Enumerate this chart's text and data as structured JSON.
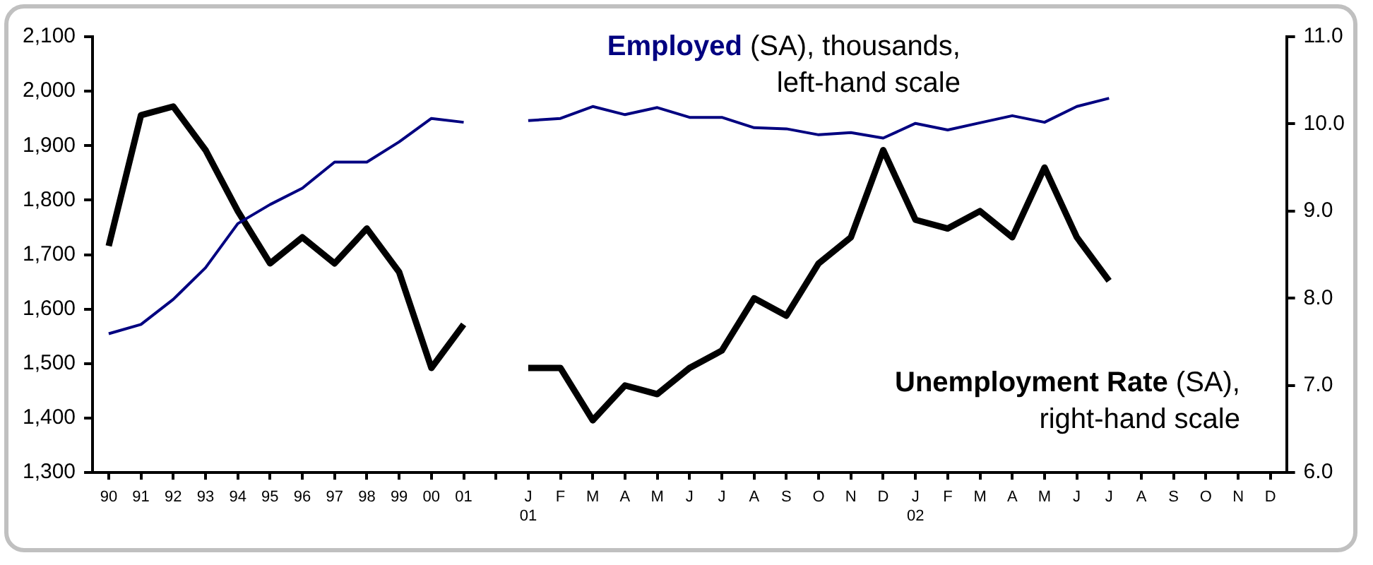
{
  "chart_data": {
    "type": "line",
    "categories": [
      "90",
      "91",
      "92",
      "93",
      "94",
      "95",
      "96",
      "97",
      "98",
      "99",
      "00",
      "01",
      null,
      "J\n01",
      "F",
      "M",
      "A",
      "M",
      "J",
      "J",
      "A",
      "S",
      "O",
      "N",
      "D",
      "J\n02",
      "F",
      "M",
      "A",
      "M",
      "J",
      "J",
      "A",
      "S",
      "O",
      "N",
      "D"
    ],
    "series": [
      {
        "name": "Employed",
        "color": "#000080",
        "axis": "y",
        "values": [
          1555,
          1572,
          1618,
          1676,
          1757,
          1792,
          1822,
          1870,
          1870,
          1907,
          1950,
          1943,
          null,
          1946,
          1950,
          1972,
          1957,
          1970,
          1952,
          1952,
          1933,
          1931,
          1920,
          1924,
          1914,
          1941,
          1929,
          1942,
          1955,
          1943,
          1972,
          1987,
          null,
          null,
          null,
          null,
          null
        ]
      },
      {
        "name": "Unemployment Rate",
        "color": "#000000",
        "axis": "y2",
        "values": [
          8.6,
          10.1,
          10.2,
          9.7,
          9.0,
          8.4,
          8.7,
          8.4,
          8.8,
          8.3,
          7.2,
          7.7,
          null,
          7.2,
          7.2,
          6.6,
          7.0,
          6.9,
          7.2,
          7.4,
          8.0,
          7.8,
          8.4,
          8.7,
          9.7,
          8.9,
          8.8,
          9.0,
          8.7,
          9.5,
          8.7,
          8.2,
          null,
          null,
          null,
          null,
          null
        ]
      }
    ],
    "annotations": [
      "(SA), thousands,",
      "left-hand scale",
      "(SA),",
      "right-hand scale"
    ],
    "ylim": [
      1300,
      2100
    ],
    "yticks": [
      {
        "value": 1300,
        "label": "1,300"
      },
      {
        "value": 1400,
        "label": "1,400"
      },
      {
        "value": 1500,
        "label": "1,500"
      },
      {
        "value": 1600,
        "label": "1,600"
      },
      {
        "value": 1700,
        "label": "1,700"
      },
      {
        "value": 1800,
        "label": "1,800"
      },
      {
        "value": 1900,
        "label": "1,900"
      },
      {
        "value": 2000,
        "label": "2,000"
      },
      {
        "value": 2100,
        "label": "2,100"
      }
    ],
    "y2lim": [
      6,
      11
    ],
    "y2ticks": [
      {
        "value": 6,
        "label": "6.0"
      },
      {
        "value": 7,
        "label": "7.0"
      },
      {
        "value": 8,
        "label": "8.0"
      },
      {
        "value": 9,
        "label": "9.0"
      },
      {
        "value": 10,
        "label": "10.0"
      },
      {
        "value": 11,
        "label": "11.0"
      }
    ],
    "grid": false,
    "legend": false,
    "marker": "none",
    "line_style": "solid"
  }
}
